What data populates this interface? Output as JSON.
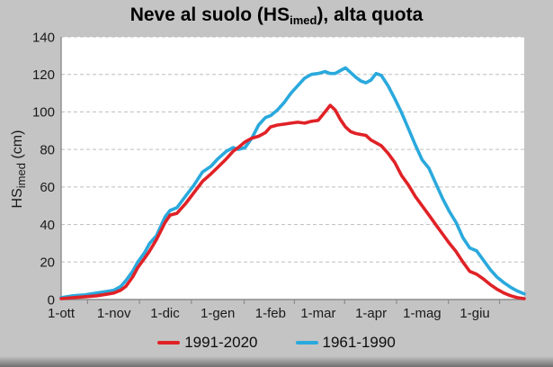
{
  "window": {
    "background": "#c4c4c4"
  },
  "chart_data": {
    "type": "line",
    "title": {
      "prefix": "Neve al suolo (HS",
      "sub": "imed",
      "suffix": "), alta quota"
    },
    "ylabel": {
      "prefix": "HS",
      "sub": "imed",
      "suffix": " (cm)"
    },
    "ylim": [
      0,
      140
    ],
    "y_ticks": [
      0,
      20,
      40,
      60,
      80,
      100,
      120,
      140
    ],
    "x_total_days": 272,
    "x_ticks": [
      {
        "label": "1-ott",
        "day": 0
      },
      {
        "label": "1-nov",
        "day": 31
      },
      {
        "label": "1-dic",
        "day": 61
      },
      {
        "label": "1-gen",
        "day": 92
      },
      {
        "label": "1-feb",
        "day": 123
      },
      {
        "label": "1-mar",
        "day": 151
      },
      {
        "label": "1-apr",
        "day": 182
      },
      {
        "label": "1-mag",
        "day": 212
      },
      {
        "label": "1-giu",
        "day": 243
      }
    ],
    "grid": "dashed-horizontal",
    "legend_position": "bottom",
    "colors": {
      "plot_bg": "#ffffff",
      "grid": "#bdbdbd",
      "axis": "#8c8c8c",
      "text": "#1a1a1a"
    },
    "series": [
      {
        "name": "1991-2020",
        "color": "#e02227",
        "points": [
          [
            0,
            0.5
          ],
          [
            7,
            1
          ],
          [
            14,
            1.5
          ],
          [
            21,
            2
          ],
          [
            28,
            3
          ],
          [
            31,
            3.5
          ],
          [
            35,
            5
          ],
          [
            38,
            7
          ],
          [
            42,
            12
          ],
          [
            45,
            17
          ],
          [
            49,
            22
          ],
          [
            52,
            26
          ],
          [
            56,
            32
          ],
          [
            61,
            41
          ],
          [
            64,
            45
          ],
          [
            68,
            46
          ],
          [
            73,
            51
          ],
          [
            78,
            57
          ],
          [
            83,
            63
          ],
          [
            88,
            67
          ],
          [
            92,
            70.5
          ],
          [
            97,
            75
          ],
          [
            101,
            79
          ],
          [
            104,
            81
          ],
          [
            108,
            84
          ],
          [
            112,
            86
          ],
          [
            116,
            87
          ],
          [
            120,
            89
          ],
          [
            123,
            92
          ],
          [
            127,
            93
          ],
          [
            131,
            93.5
          ],
          [
            135,
            94
          ],
          [
            139,
            94.5
          ],
          [
            143,
            94
          ],
          [
            147,
            95
          ],
          [
            151,
            95.5
          ],
          [
            155,
            100
          ],
          [
            158,
            103.5
          ],
          [
            161,
            101
          ],
          [
            164,
            96
          ],
          [
            167,
            92
          ],
          [
            170,
            89.5
          ],
          [
            173,
            88.5
          ],
          [
            176,
            88
          ],
          [
            179,
            87.5
          ],
          [
            182,
            85
          ],
          [
            185,
            83.5
          ],
          [
            188,
            82
          ],
          [
            192,
            78
          ],
          [
            196,
            73
          ],
          [
            200,
            66
          ],
          [
            204,
            61
          ],
          [
            208,
            55
          ],
          [
            212,
            50
          ],
          [
            216,
            45
          ],
          [
            220,
            40
          ],
          [
            224,
            35
          ],
          [
            228,
            30
          ],
          [
            232,
            25.5
          ],
          [
            236,
            20
          ],
          [
            240,
            15
          ],
          [
            244,
            13.5
          ],
          [
            248,
            11
          ],
          [
            252,
            8
          ],
          [
            256,
            5.5
          ],
          [
            260,
            3.5
          ],
          [
            264,
            2
          ],
          [
            268,
            1
          ],
          [
            272,
            0.5
          ]
        ]
      },
      {
        "name": "1961-1990",
        "color": "#2aa9dd",
        "points": [
          [
            0,
            1
          ],
          [
            7,
            2
          ],
          [
            14,
            2.5
          ],
          [
            21,
            3.5
          ],
          [
            28,
            4.5
          ],
          [
            31,
            5
          ],
          [
            35,
            7
          ],
          [
            38,
            10
          ],
          [
            42,
            15
          ],
          [
            45,
            20
          ],
          [
            49,
            25
          ],
          [
            52,
            30
          ],
          [
            56,
            34
          ],
          [
            61,
            44
          ],
          [
            64,
            47.5
          ],
          [
            68,
            49
          ],
          [
            73,
            55
          ],
          [
            78,
            61
          ],
          [
            83,
            68
          ],
          [
            88,
            71
          ],
          [
            92,
            75
          ],
          [
            97,
            79
          ],
          [
            101,
            81
          ],
          [
            104,
            80
          ],
          [
            108,
            81
          ],
          [
            112,
            86
          ],
          [
            116,
            93
          ],
          [
            120,
            97
          ],
          [
            123,
            98
          ],
          [
            127,
            101
          ],
          [
            131,
            105
          ],
          [
            135,
            110
          ],
          [
            139,
            114
          ],
          [
            143,
            118
          ],
          [
            147,
            120
          ],
          [
            151,
            120.5
          ],
          [
            155,
            121.5
          ],
          [
            158,
            120.5
          ],
          [
            161,
            120.5
          ],
          [
            164,
            122
          ],
          [
            167,
            123.5
          ],
          [
            170,
            121
          ],
          [
            173,
            118.5
          ],
          [
            176,
            116.5
          ],
          [
            179,
            115.5
          ],
          [
            182,
            117
          ],
          [
            185,
            120.5
          ],
          [
            188,
            119.5
          ],
          [
            192,
            114
          ],
          [
            196,
            107
          ],
          [
            200,
            99.5
          ],
          [
            204,
            91
          ],
          [
            208,
            82.5
          ],
          [
            212,
            74.5
          ],
          [
            216,
            70
          ],
          [
            220,
            62
          ],
          [
            224,
            54
          ],
          [
            228,
            47
          ],
          [
            232,
            41
          ],
          [
            236,
            33
          ],
          [
            240,
            27.5
          ],
          [
            244,
            26
          ],
          [
            248,
            21
          ],
          [
            252,
            16
          ],
          [
            256,
            12
          ],
          [
            260,
            9
          ],
          [
            264,
            6.5
          ],
          [
            268,
            4.5
          ],
          [
            272,
            3
          ]
        ]
      }
    ]
  }
}
